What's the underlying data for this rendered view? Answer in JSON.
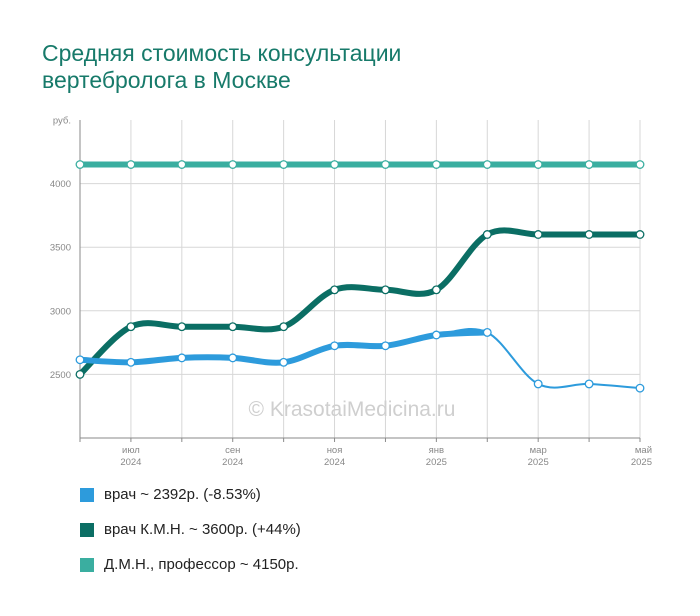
{
  "title_lines": [
    "Средняя стоимость консультации",
    "вертебролога в Москве"
  ],
  "watermark": "© KrasotaiMedicina.ru",
  "colors": {
    "grid": "#d7d7d7",
    "axis": "#8a8a8a",
    "title": "#177a6a"
  },
  "chart_data": {
    "type": "line",
    "title": "Средняя стоимость консультации вертебролога в Москве",
    "ylabel": "руб.",
    "ylim": [
      2000,
      4500
    ],
    "yticks": [
      2500,
      3000,
      3500,
      4000
    ],
    "x": [
      0,
      1,
      2,
      3,
      4,
      5,
      6,
      7,
      8,
      9,
      10,
      11
    ],
    "x_range": [
      0,
      11
    ],
    "x_tick_labels": [
      {
        "x": 1,
        "month": "июл",
        "year": "2024"
      },
      {
        "x": 3,
        "month": "сен",
        "year": "2024"
      },
      {
        "x": 5,
        "month": "ноя",
        "year": "2024"
      },
      {
        "x": 7,
        "month": "янв",
        "year": "2025"
      },
      {
        "x": 9,
        "month": "мар",
        "year": "2025"
      },
      {
        "x": 11,
        "month": "май",
        "year": "2025"
      }
    ],
    "grid": true,
    "legend_position": "bottom",
    "series": [
      {
        "name": "врач ~ 2392р. (-8.53%)",
        "color": "#2d9bdc",
        "values": [
          2615,
          2595,
          2630,
          2630,
          2595,
          2725,
          2725,
          2810,
          2830,
          2425,
          2425,
          2392
        ],
        "highlight_segments": [
          [
            0,
            8
          ]
        ]
      },
      {
        "name": "врач К.М.Н. ~ 3600р. (+44%)",
        "color": "#0b6e64",
        "values": [
          2500,
          2875,
          2875,
          2875,
          2875,
          3165,
          3165,
          3165,
          3600,
          3600,
          3600,
          3600
        ],
        "highlight_segments": [
          [
            0,
            11
          ]
        ]
      },
      {
        "name": "Д.М.Н., профессор ~ 4150р.",
        "color": "#3aaea0",
        "values": [
          4150,
          4150,
          4150,
          4150,
          4150,
          4150,
          4150,
          4150,
          4150,
          4150,
          4150,
          4150
        ],
        "highlight_segments": [
          [
            0,
            11
          ]
        ]
      }
    ]
  }
}
